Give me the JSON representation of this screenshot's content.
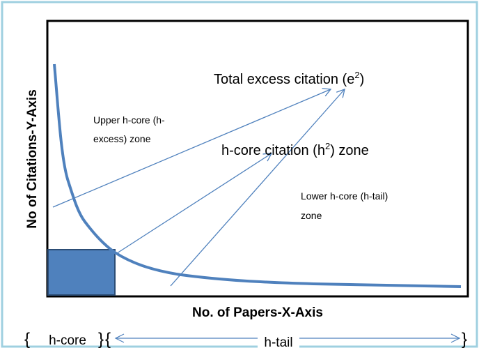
{
  "y_axis_label": "No of Citations-Y-Axis",
  "x_axis_label": "No. of Papers-X-Axis",
  "total_excess": {
    "text": "Total excess citation (e",
    "sup": "2",
    "end": ")"
  },
  "h_core_zone": {
    "text": "h-core citation (h",
    "sup": "2",
    "end": ") zone"
  },
  "upper_zone": {
    "lines": [
      "Upper h-core (h-",
      "excess) zone"
    ]
  },
  "lower_zone": {
    "lines": [
      "Lower h-core (h-tail)",
      "zone"
    ]
  },
  "h_core_label": "h-core",
  "h_tail_label": "h-tail"
}
